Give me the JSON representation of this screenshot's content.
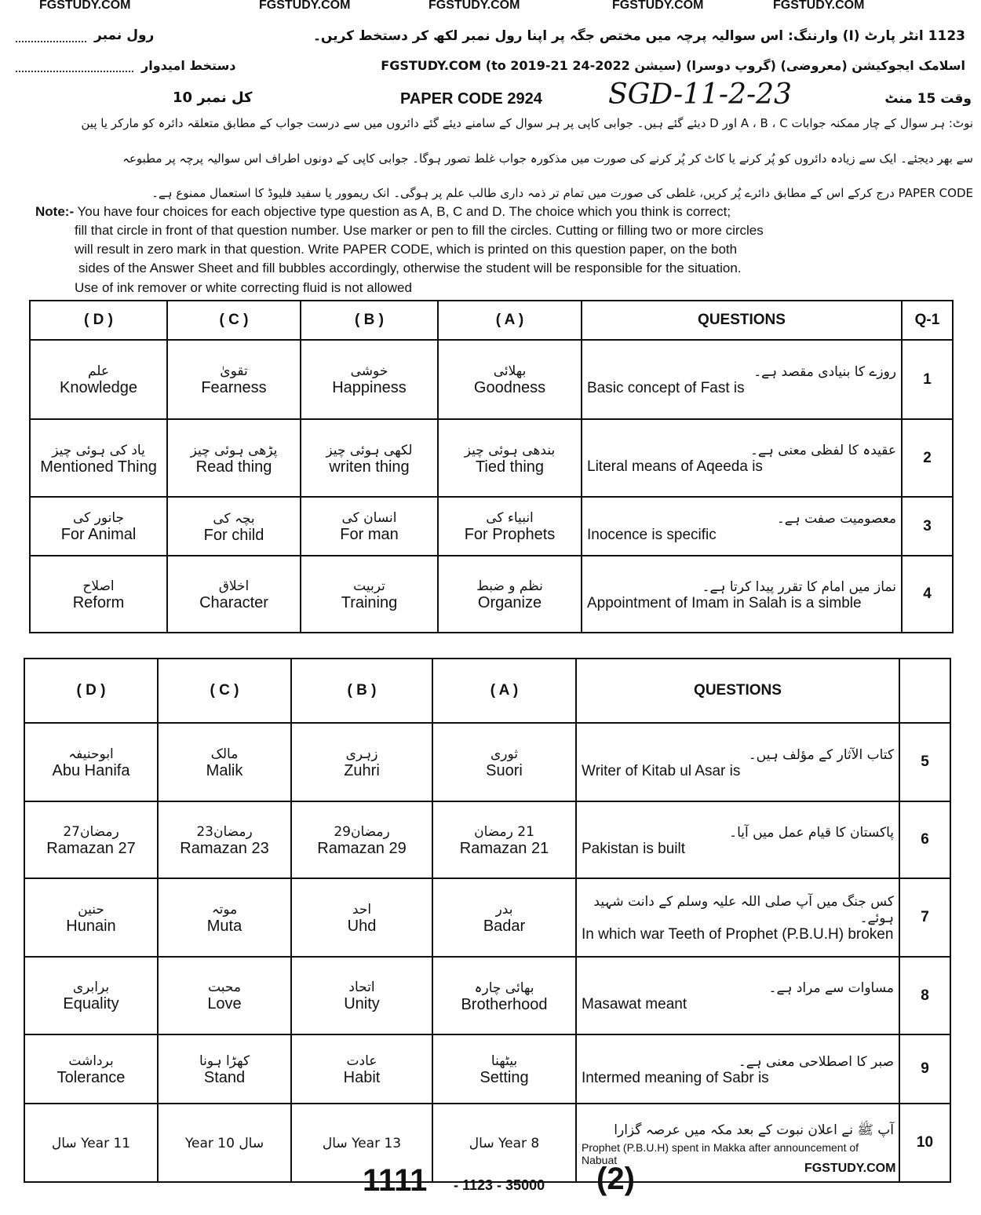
{
  "watermarks": [
    "FGSTUDY.COM",
    "FGSTUDY.COM",
    "FGSTUDY.COM",
    "FGSTUDY.COM",
    "FGSTUDY.COM"
  ],
  "header": {
    "line1": "1123 انٹر پارٹ (I) وارننگ: اس سوالیہ پرچہ میں مختص جگہ پر اپنا رول نمبر لکھ کر دستخط کریں۔",
    "roll_label": "رول نمبر",
    "line2": "اسلامک ایجوکیشن (معروضی) (گروپ دوسرا) (سیشن 2022-24 to 2019-21) FGSTUDY.COM",
    "sign_label": "دستخط امیدوار",
    "time": "وقت 15 منٹ",
    "paper_code": "PAPER CODE 2924",
    "handwritten": "SGD-11-2-23",
    "total_marks": "کل نمبر 10"
  },
  "urdu_note": [
    "نوٹ: ہر سوال کے چار ممکنہ جوابات A ، B ، C اور D دیئے گئے ہیں۔ جوابی کاپی پر ہر سوال کے سامنے دیئے گئے دائروں میں سے درست جواب کے مطابق متعلقہ دائرہ کو مارکر یا پین",
    "سے بھر دیجئے۔ ایک سے زیادہ دائروں کو پُر کرنے یا کاٹ کر پُر کرنے کی صورت میں مذکورہ جواب غلط تصور ہوگا۔ جوابی کاپی کے دونوں اطراف اس سوالیہ پرچہ پر مطبوعہ",
    "PAPER CODE درج کرکے اس کے مطابق دائرے پُر کریں، غلطی کی صورت میں تمام تر ذمہ داری طالب علم پر ہوگی۔ انک ریموور یا سفید فلیوڈ کا استعمال ممنوع ہے۔"
  ],
  "note": {
    "label": "Note:-",
    "lines": [
      "You have four choices for each objective type question as A, B, C and D.  The choice which you think is correct;",
      "fill that circle in front of that question number.  Use marker or pen to fill the circles. Cutting or filling two or more circles",
      "will result in zero mark in that question.   Write PAPER CODE, which is printed on this question paper, on the   both",
      "sides of  the  Answer  Sheet and fill bubbles accordingly,  otherwise  the student  will be responsible for  the situation.",
      "Use  of ink remover or white correcting  fluid is not allowed"
    ]
  },
  "table_headers": {
    "d": "( D )",
    "c": "( C )",
    "b": "( B )",
    "a": "( A )",
    "questions": "QUESTIONS",
    "qno": "Q-1"
  },
  "questions": [
    {
      "no": "1",
      "q_ur": "روزے کا بنیادی مقصد ہے۔",
      "q_en": "Basic concept of Fast is",
      "a": [
        "بھلائی",
        "Goodness"
      ],
      "b": [
        "خوشی",
        "Happiness"
      ],
      "c": [
        "تقویٰ",
        "Fearness"
      ],
      "d": [
        "علم",
        "Knowledge"
      ]
    },
    {
      "no": "2",
      "q_ur": "عقیدہ کا لفظی معنی ہے۔",
      "q_en": "Literal means of Aqeeda is",
      "a": [
        "بندھی ہوئی چیز",
        "Tied thing"
      ],
      "b": [
        "لکھی ہوئی چیز",
        "writen thing"
      ],
      "c": [
        "پڑھی ہوئی چیز",
        "Read thing"
      ],
      "d": [
        "یاد کی ہوئی چیز",
        "Mentioned Thing"
      ]
    },
    {
      "no": "3",
      "q_ur": "معصومیت صفت ہے۔",
      "q_en": "Inocence is specific",
      "a": [
        "انبیاء کی",
        "For Prophets"
      ],
      "b": [
        "انسان کی",
        "For man"
      ],
      "c": [
        "بچہ کی",
        "For child"
      ],
      "d": [
        "جانور کی",
        "For Animal"
      ]
    },
    {
      "no": "4",
      "q_ur": "نماز میں امام کا تقرر پیدا کرتا ہے۔",
      "q_en": "Appointment of Imam in Salah is a simble",
      "a": [
        "نظم و ضبط",
        "Organize"
      ],
      "b": [
        "تربیت",
        "Training"
      ],
      "c": [
        "اخلاق",
        "Character"
      ],
      "d": [
        "اصلاح",
        "Reform"
      ]
    },
    {
      "no": "5",
      "q_ur": "کتاب الآثار کے مؤلف ہیں۔",
      "q_en": "Writer of Kitab ul Asar is",
      "a": [
        "ثوری",
        "Suori"
      ],
      "b": [
        "زہری",
        "Zuhri"
      ],
      "c": [
        "مالک",
        "Malik"
      ],
      "d": [
        "ابوحنیفہ",
        "Abu Hanifa"
      ]
    },
    {
      "no": "6",
      "q_ur": "پاکستان کا قیام عمل میں آیا۔",
      "q_en": "Pakistan is built",
      "a": [
        "21 رمضان",
        "Ramazan 21"
      ],
      "b": [
        "رمضان29",
        "Ramazan 29"
      ],
      "c": [
        "رمضان23",
        "Ramazan 23"
      ],
      "d": [
        "رمضان27",
        "Ramazan 27"
      ]
    },
    {
      "no": "7",
      "q_ur": "کس جنگ میں آپ صلی اللہ علیہ وسلم کے دانت شہید ہوئے۔",
      "q_en": "In which war Teeth of Prophet (P.B.U.H) broken",
      "a": [
        "بدر",
        "Badar"
      ],
      "b": [
        "احد",
        "Uhd"
      ],
      "c": [
        "موتہ",
        "Muta"
      ],
      "d": [
        "حنین",
        "Hunain"
      ]
    },
    {
      "no": "8",
      "q_ur": "مساوات سے مراد ہے۔",
      "q_en": "Masawat meant",
      "a": [
        "بھائی چارہ",
        "Brotherhood"
      ],
      "b": [
        "اتحاد",
        "Unity"
      ],
      "c": [
        "محبت",
        "Love"
      ],
      "d": [
        "برابری",
        "Equality"
      ]
    },
    {
      "no": "9",
      "q_ur": "صبر کا اصطلاحی معنی ہے۔",
      "q_en": "Intermed meaning of Sabr is",
      "a": [
        "بیٹھنا",
        "Setting"
      ],
      "b": [
        "عادت",
        "Habit"
      ],
      "c": [
        "کھڑا ہونا",
        "Stand"
      ],
      "d": [
        "برداشت",
        "Tolerance"
      ]
    },
    {
      "no": "10",
      "q_ur": "آپ ﷺ نے اعلان نبوت کے بعد مکہ میں عرصہ گزارا",
      "q_en": "Prophet (P.B.U.H) spent in Makka after announcement of Nabuat",
      "a": [
        "Year 8 سال",
        ""
      ],
      "b": [
        "Year 13 سال",
        ""
      ],
      "c": [
        "سال 10 Year",
        ""
      ],
      "d": [
        "Year 11 سال",
        ""
      ]
    }
  ],
  "footer": {
    "code_big": "1111",
    "code_small": "- 1123 - 35000",
    "page": "(2)",
    "watermark": "FGSTUDY.COM"
  }
}
